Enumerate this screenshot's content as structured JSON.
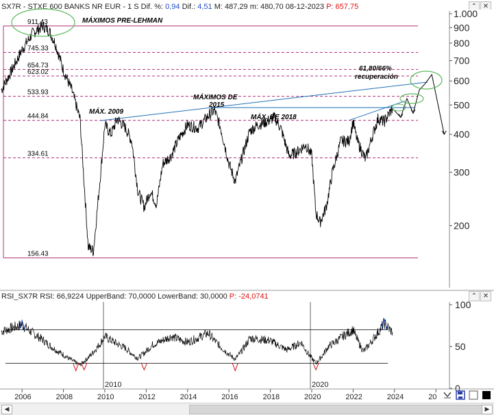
{
  "price_panel": {
    "symbol": "SX7R",
    "name": "STXE 600 BANKS NR EUR",
    "period": "1 S",
    "dif_pct_label": "Dif. %:",
    "dif_pct": "0,94",
    "dif_label": "Dif.:",
    "dif": "4,51",
    "max_label": "M:",
    "max": "487,29",
    "min_label": "m:",
    "min": "480,70",
    "date": "08-12-2023",
    "p_label": "P:",
    "p": "657,75"
  },
  "rsi_panel": {
    "name": "RSI_SX7R",
    "rsi_label": "RSI:",
    "rsi": "66,9224",
    "upper_label": "UpperBand:",
    "upper": "70,0000",
    "lower_label": "LowerBand:",
    "lower": "30,0000",
    "p_label": "P:",
    "p": "-24,0741"
  },
  "window_buttons": {
    "up": "⌃",
    "close": "✕"
  },
  "icons": [
    "chevron-up-icon",
    "close-icon",
    "settings-icon",
    "save-icon",
    "stop-icon"
  ],
  "colors": {
    "price_line": "#000000",
    "support_level": "#b0307a",
    "trendline": "#1f6fb5",
    "oval": "#5cb85c",
    "rsi_oversold": "#d11111",
    "rsi_overbought": "#2255cc"
  },
  "chart_data": [
    {
      "type": "line",
      "title": "",
      "x_axis": {
        "tick_labels": [
          "2006",
          "2008",
          "2010",
          "2012",
          "2014",
          "2016",
          "2018",
          "2020",
          "2022",
          "2024",
          "20"
        ],
        "range": [
          2005,
          2026.5
        ]
      },
      "y_axis": {
        "scale": "log",
        "range": [
          140,
          1000
        ],
        "tick_labels": [
          "1.000",
          "900",
          "800",
          "700",
          "600",
          "500",
          "400",
          "300",
          "200"
        ]
      },
      "levels": [
        {
          "label": "911.43",
          "value": 911.43
        },
        {
          "label": "745.33",
          "value": 745.33
        },
        {
          "label": "654.73",
          "value": 654.73
        },
        {
          "label": "623.02",
          "value": 623.02
        },
        {
          "label": "533.93",
          "value": 533.93
        },
        {
          "label": "444.84",
          "value": 444.84
        },
        {
          "label": "334.61",
          "value": 334.61
        },
        {
          "label": "156.43",
          "value": 156.43
        }
      ],
      "annotations": [
        "MÁXIMOS PRE-LEHMAN",
        "MÁX. 2009",
        "MÁXIMOS DE",
        "2015",
        "MÁX. DE 2018",
        "61,80/66%",
        "recuperación"
      ],
      "series": [
        {
          "points": [
            [
              2005.0,
              560
            ],
            [
              2005.5,
              650
            ],
            [
              2006.0,
              760
            ],
            [
              2006.5,
              860
            ],
            [
              2007.0,
              911
            ],
            [
              2007.3,
              880
            ],
            [
              2007.6,
              800
            ],
            [
              2008.0,
              650
            ],
            [
              2008.4,
              560
            ],
            [
              2008.8,
              450
            ],
            [
              2009.2,
              170
            ],
            [
              2009.45,
              165
            ],
            [
              2009.8,
              300
            ],
            [
              2010.0,
              430
            ],
            [
              2010.3,
              400
            ],
            [
              2010.6,
              450
            ],
            [
              2011.0,
              420
            ],
            [
              2011.3,
              380
            ],
            [
              2011.6,
              260
            ],
            [
              2011.9,
              230
            ],
            [
              2012.2,
              260
            ],
            [
              2012.5,
              235
            ],
            [
              2012.8,
              320
            ],
            [
              2013.2,
              340
            ],
            [
              2013.6,
              390
            ],
            [
              2014.0,
              430
            ],
            [
              2014.5,
              420
            ],
            [
              2015.0,
              460
            ],
            [
              2015.3,
              480
            ],
            [
              2015.6,
              420
            ],
            [
              2016.0,
              320
            ],
            [
              2016.3,
              280
            ],
            [
              2016.6,
              330
            ],
            [
              2017.0,
              410
            ],
            [
              2017.4,
              430
            ],
            [
              2017.8,
              440
            ],
            [
              2018.2,
              455
            ],
            [
              2018.5,
              420
            ],
            [
              2018.9,
              340
            ],
            [
              2019.3,
              350
            ],
            [
              2019.7,
              370
            ],
            [
              2020.0,
              340
            ],
            [
              2020.2,
              220
            ],
            [
              2020.4,
              205
            ],
            [
              2020.7,
              230
            ],
            [
              2021.0,
              300
            ],
            [
              2021.4,
              380
            ],
            [
              2021.8,
              380
            ],
            [
              2022.0,
              440
            ],
            [
              2022.2,
              380
            ],
            [
              2022.6,
              330
            ],
            [
              2022.9,
              390
            ],
            [
              2023.2,
              450
            ],
            [
              2023.5,
              440
            ],
            [
              2023.9,
              487
            ]
          ]
        },
        {
          "name": "",
          "projection": true,
          "points": [
            [
              2023.9,
              487
            ],
            [
              2024.3,
              455
            ],
            [
              2024.6,
              525
            ],
            [
              2024.9,
              470
            ],
            [
              2025.2,
              560
            ],
            [
              2025.5,
              590
            ],
            [
              2025.8,
              630
            ],
            [
              2026.4,
              400
            ]
          ]
        }
      ]
    },
    {
      "type": "line",
      "title": "",
      "y_axis": {
        "range": [
          0,
          100
        ],
        "tick_labels": [
          "100",
          "50",
          "0"
        ]
      },
      "x_axis": {
        "tick_labels": [
          "2010",
          "2020"
        ]
      },
      "bands": {
        "upper": 70,
        "lower": 30
      },
      "series": [
        {
          "points": [
            [
              2005.0,
              68
            ],
            [
              2006.0,
              76
            ],
            [
              2007.0,
              58
            ],
            [
              2008.0,
              40
            ],
            [
              2008.8,
              28
            ],
            [
              2009.5,
              45
            ],
            [
              2010.0,
              62
            ],
            [
              2011.0,
              48
            ],
            [
              2011.6,
              36
            ],
            [
              2012.3,
              52
            ],
            [
              2013.2,
              62
            ],
            [
              2014.0,
              55
            ],
            [
              2015.0,
              66
            ],
            [
              2015.8,
              45
            ],
            [
              2016.3,
              35
            ],
            [
              2017.0,
              60
            ],
            [
              2018.0,
              57
            ],
            [
              2018.8,
              46
            ],
            [
              2019.5,
              55
            ],
            [
              2020.2,
              30
            ],
            [
              2020.8,
              50
            ],
            [
              2021.5,
              62
            ],
            [
              2022.0,
              70
            ],
            [
              2022.5,
              44
            ],
            [
              2023.0,
              60
            ],
            [
              2023.5,
              78
            ],
            [
              2023.9,
              67
            ]
          ]
        }
      ]
    }
  ]
}
